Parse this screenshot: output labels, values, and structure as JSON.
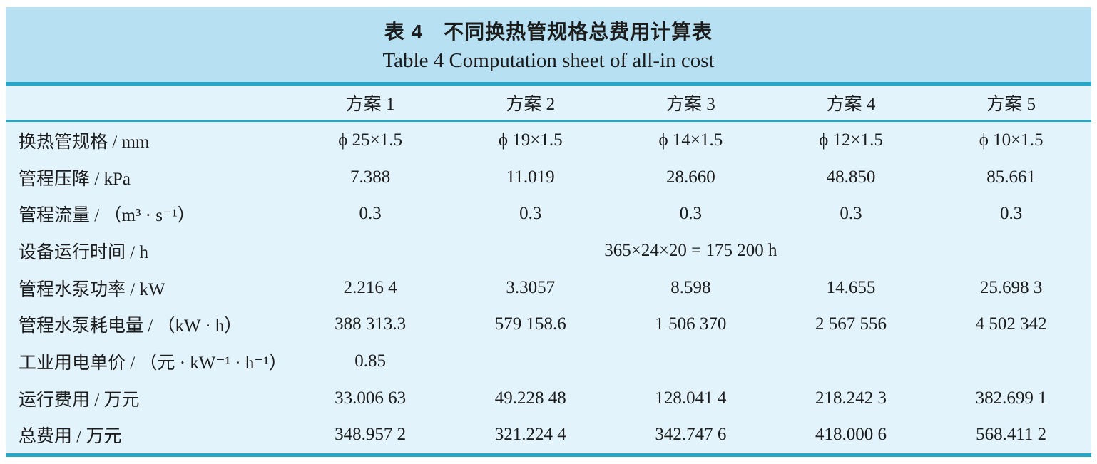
{
  "title": {
    "zh": "表 4　不同换热管规格总费用计算表",
    "en": "Table 4  Computation sheet of all-in cost"
  },
  "colors": {
    "title_band_bg": "#b7e1f2",
    "table_bg": "#e2f3fb",
    "rule": "#25a7c9"
  },
  "table": {
    "columns": [
      "",
      "方案 1",
      "方案 2",
      "方案 3",
      "方案 4",
      "方案 5"
    ],
    "rows": [
      {
        "label": "换热管规格 / mm",
        "cells": [
          "ϕ 25×1.5",
          "ϕ 19×1.5",
          "ϕ 14×1.5",
          "ϕ 12×1.5",
          "ϕ 10×1.5"
        ]
      },
      {
        "label": "管程压降 / kPa",
        "cells": [
          "7.388",
          "11.019",
          "28.660",
          "48.850",
          "85.661"
        ]
      },
      {
        "label": "管程流量 / （m³ · s⁻¹）",
        "cells": [
          "0.3",
          "0.3",
          "0.3",
          "0.3",
          "0.3"
        ]
      },
      {
        "label": "设备运行时间 / h",
        "span_value": "365×24×20 = 175 200 h"
      },
      {
        "label": "管程水泵功率 / kW",
        "cells": [
          "2.216 4",
          "3.3057",
          "8.598",
          "14.655",
          "25.698 3"
        ]
      },
      {
        "label": "管程水泵耗电量 / （kW · h）",
        "cells": [
          "388 313.3",
          "579 158.6",
          "1 506 370",
          "2 567 556",
          "4 502 342"
        ]
      },
      {
        "label": "工业用电单价 / （元 · kW⁻¹ · h⁻¹）",
        "cells": [
          "0.85",
          "",
          "",
          "",
          ""
        ]
      },
      {
        "label": "运行费用 / 万元",
        "cells": [
          "33.006 63",
          "49.228 48",
          "128.041 4",
          "218.242 3",
          "382.699 1"
        ]
      },
      {
        "label": "总费用 / 万元",
        "cells": [
          "348.957 2",
          "321.224 4",
          "342.747 6",
          "418.000 6",
          "568.411 2"
        ]
      }
    ]
  }
}
